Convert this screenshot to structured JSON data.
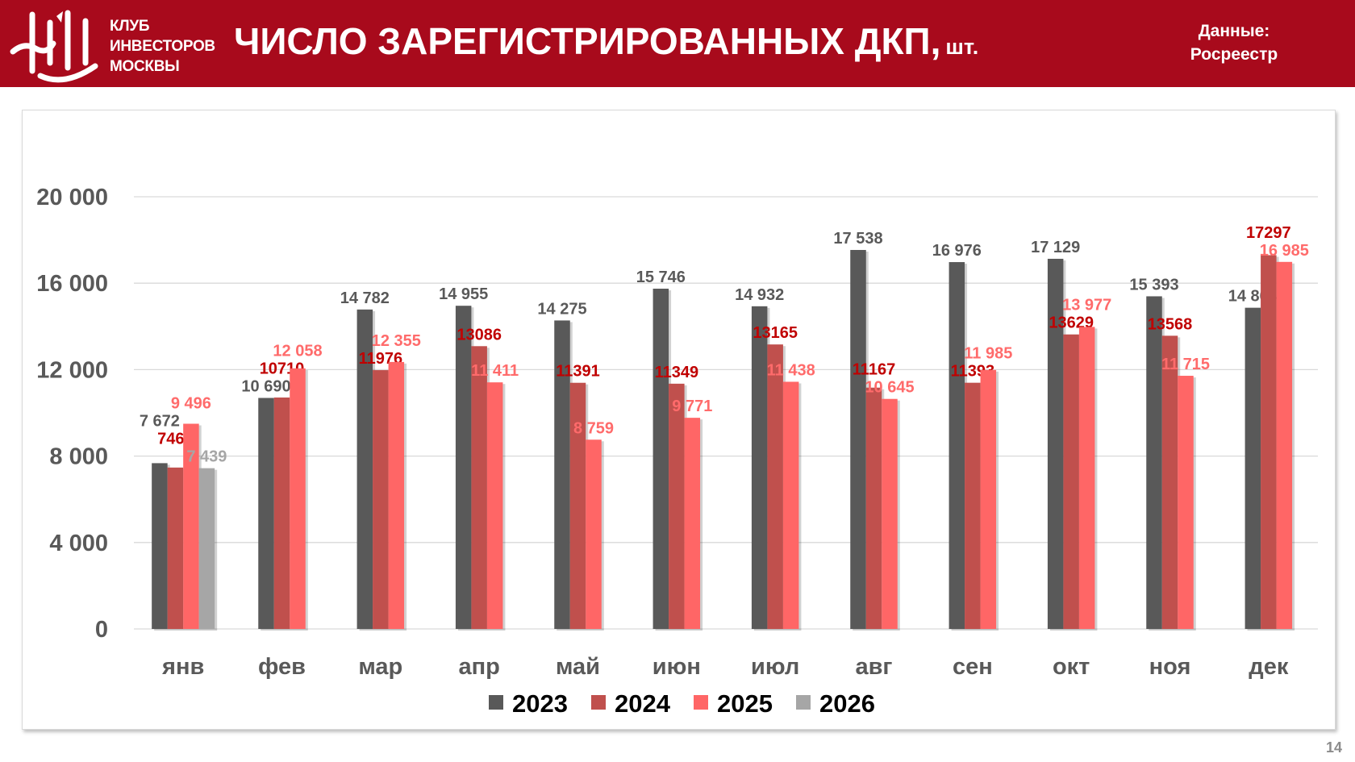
{
  "header": {
    "club_lines": [
      "КЛУБ",
      "ИНВЕСТОРОВ",
      "МОСКВЫ"
    ],
    "logo_monogram": "КИМ",
    "title": "ЧИСЛО ЗАРЕГИСТРИРОВАННЫХ ДКП,",
    "title_unit": "шт.",
    "source_lines": [
      "Данные:",
      "Росреестр"
    ]
  },
  "page_number": "14",
  "chart_data": {
    "type": "bar",
    "title": "ЧИСЛО ЗАРЕГИСТРИРОВАННЫХ ДКП, шт.",
    "xlabel": "",
    "ylabel": "",
    "ylim": [
      0,
      20000
    ],
    "yticks": [
      0,
      4000,
      8000,
      12000,
      16000,
      20000
    ],
    "ytick_labels": [
      "0",
      "4 000",
      "8 000",
      "12 000",
      "16 000",
      "20 000"
    ],
    "grid": true,
    "legend_position": "bottom",
    "categories": [
      "янв",
      "фев",
      "мар",
      "апр",
      "май",
      "июн",
      "июл",
      "авг",
      "сен",
      "окт",
      "ноя",
      "дек"
    ],
    "series": [
      {
        "name": "2023",
        "color": "#595959",
        "label_color": "#595959",
        "values": [
          7672,
          10690,
          14782,
          14955,
          14275,
          15746,
          14932,
          17538,
          16976,
          17129,
          15393,
          14864
        ],
        "labels": [
          "7 672",
          "10 690",
          "14 782",
          "14 955",
          "14 275",
          "15 746",
          "14 932",
          "17 538",
          "16 976",
          "17 129",
          "15 393",
          "14 864"
        ]
      },
      {
        "name": "2024",
        "color": "#C0504D",
        "label_color": "#C00000",
        "values": [
          7469,
          10710,
          11976,
          13086,
          11391,
          11349,
          13165,
          11167,
          11393,
          13629,
          13568,
          17297
        ],
        "labels": [
          "7469",
          "10710",
          "11976",
          "13086",
          "11391",
          "11349",
          "13165",
          "11167",
          "11393",
          "13629",
          "13568",
          "17297"
        ]
      },
      {
        "name": "2025",
        "color": "#FF6666",
        "label_color": "#FF6B6B",
        "values": [
          9496,
          12058,
          12355,
          11411,
          8759,
          9771,
          11438,
          10645,
          11985,
          13977,
          11715,
          16985
        ],
        "labels": [
          "9 496",
          "12 058",
          "12 355",
          "11 411",
          "8 759",
          "9 771",
          "11 438",
          "10 645",
          "11 985",
          "13 977",
          "11 715",
          "16 985"
        ]
      },
      {
        "name": "2026",
        "color": "#A6A6A6",
        "label_color": "#A6A6A6",
        "values": [
          7439,
          null,
          null,
          null,
          null,
          null,
          null,
          null,
          null,
          null,
          null,
          null
        ],
        "labels": [
          "7 439",
          null,
          null,
          null,
          null,
          null,
          null,
          null,
          null,
          null,
          null,
          null
        ]
      }
    ]
  }
}
